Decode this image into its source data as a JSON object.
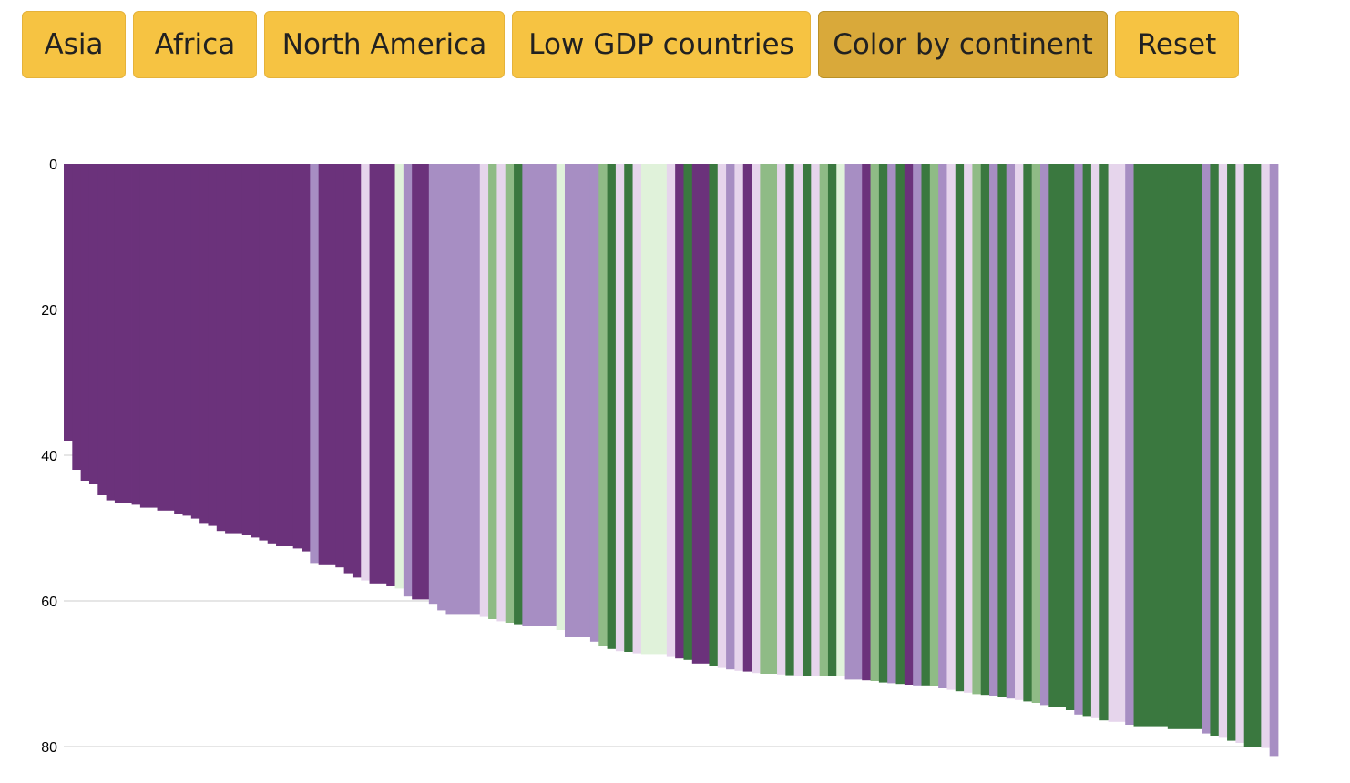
{
  "buttons": [
    {
      "id": "asia",
      "label": "Asia",
      "active": false
    },
    {
      "id": "africa",
      "label": "Africa",
      "active": false
    },
    {
      "id": "north_america",
      "label": "North America",
      "active": false
    },
    {
      "id": "low_gdp",
      "label": "Low GDP countries",
      "active": false
    },
    {
      "id": "color_by_continent",
      "label": "Color by continent",
      "active": true
    },
    {
      "id": "reset",
      "label": "Reset",
      "active": false
    }
  ],
  "colors": {
    "button_bg": "#f6c342",
    "button_active_bg": "#d9a93a",
    "grid": "#cccccc",
    "palette": {
      "dark_purple": "#6b327b",
      "medium_purple": "#a78ec3",
      "light_purple": "#e6d5ec",
      "light_green": "#e0f2da",
      "medium_green": "#8fbb86",
      "dark_green": "#3a783f"
    }
  },
  "chart_data": {
    "type": "bar",
    "orientation": "vertical-down",
    "ylim": [
      0,
      80
    ],
    "yticks": [
      0,
      20,
      40,
      60,
      80
    ],
    "grid": "horizontal",
    "bars": [
      [
        "dark_purple",
        38.0,
        1
      ],
      [
        "dark_purple",
        42.0,
        1
      ],
      [
        "dark_purple",
        43.5,
        1
      ],
      [
        "dark_purple",
        44.0,
        1
      ],
      [
        "dark_purple",
        45.5,
        1
      ],
      [
        "dark_purple",
        46.2,
        1
      ],
      [
        "dark_purple",
        46.5,
        2
      ],
      [
        "dark_purple",
        46.8,
        1
      ],
      [
        "dark_purple",
        47.2,
        2
      ],
      [
        "dark_purple",
        47.6,
        2
      ],
      [
        "dark_purple",
        48.0,
        1
      ],
      [
        "dark_purple",
        48.3,
        1
      ],
      [
        "dark_purple",
        48.7,
        1
      ],
      [
        "dark_purple",
        49.3,
        1
      ],
      [
        "dark_purple",
        49.7,
        1
      ],
      [
        "dark_purple",
        50.4,
        1
      ],
      [
        "dark_purple",
        50.7,
        2
      ],
      [
        "dark_purple",
        51.0,
        1
      ],
      [
        "dark_purple",
        51.3,
        1
      ],
      [
        "dark_purple",
        51.7,
        1
      ],
      [
        "dark_purple",
        52.1,
        1
      ],
      [
        "dark_purple",
        52.5,
        2
      ],
      [
        "dark_purple",
        52.8,
        1
      ],
      [
        "dark_purple",
        53.2,
        1
      ],
      [
        "medium_purple",
        54.8,
        1
      ],
      [
        "dark_purple",
        55.1,
        2
      ],
      [
        "dark_purple",
        55.4,
        1
      ],
      [
        "dark_purple",
        56.2,
        1
      ],
      [
        "dark_purple",
        56.8,
        1
      ],
      [
        "light_purple",
        57.2,
        1
      ],
      [
        "dark_purple",
        57.6,
        2
      ],
      [
        "dark_purple",
        58.0,
        1
      ],
      [
        "light_green",
        58.3,
        1
      ],
      [
        "medium_purple",
        59.4,
        1
      ],
      [
        "dark_purple",
        59.8,
        2
      ],
      [
        "medium_purple",
        60.4,
        1
      ],
      [
        "medium_purple",
        61.3,
        1
      ],
      [
        "medium_purple",
        61.8,
        4
      ],
      [
        "light_purple",
        62.2,
        1
      ],
      [
        "medium_green",
        62.5,
        1
      ],
      [
        "light_purple",
        62.8,
        1
      ],
      [
        "medium_green",
        63.0,
        1
      ],
      [
        "dark_green",
        63.2,
        1
      ],
      [
        "medium_purple",
        63.5,
        4
      ],
      [
        "light_green",
        64.0,
        1
      ],
      [
        "medium_purple",
        65.0,
        3
      ],
      [
        "medium_purple",
        65.6,
        1
      ],
      [
        "medium_green",
        66.2,
        1
      ],
      [
        "dark_green",
        66.6,
        1
      ],
      [
        "light_purple",
        66.9,
        1
      ],
      [
        "dark_green",
        67.0,
        1
      ],
      [
        "light_purple",
        67.2,
        1
      ],
      [
        "light_green",
        67.3,
        3
      ],
      [
        "light_purple",
        67.7,
        1
      ],
      [
        "dark_purple",
        67.9,
        1
      ],
      [
        "dark_green",
        68.1,
        1
      ],
      [
        "dark_purple",
        68.6,
        2
      ],
      [
        "dark_green",
        69.0,
        1
      ],
      [
        "light_purple",
        69.2,
        1
      ],
      [
        "medium_purple",
        69.4,
        1
      ],
      [
        "light_purple",
        69.6,
        1
      ],
      [
        "dark_purple",
        69.7,
        1
      ],
      [
        "light_purple",
        69.9,
        1
      ],
      [
        "medium_green",
        70.0,
        2
      ],
      [
        "light_purple",
        70.1,
        1
      ],
      [
        "dark_green",
        70.2,
        1
      ],
      [
        "light_purple",
        70.3,
        1
      ],
      [
        "dark_green",
        70.3,
        1
      ],
      [
        "light_purple",
        70.3,
        1
      ],
      [
        "medium_green",
        70.3,
        1
      ],
      [
        "dark_green",
        70.3,
        1
      ],
      [
        "light_green",
        70.3,
        1
      ],
      [
        "medium_purple",
        70.8,
        2
      ],
      [
        "dark_purple",
        70.9,
        1
      ],
      [
        "medium_green",
        71.0,
        1
      ],
      [
        "dark_green",
        71.2,
        1
      ],
      [
        "medium_purple",
        71.3,
        1
      ],
      [
        "dark_green",
        71.4,
        1
      ],
      [
        "dark_purple",
        71.5,
        1
      ],
      [
        "medium_purple",
        71.6,
        1
      ],
      [
        "dark_green",
        71.6,
        1
      ],
      [
        "medium_green",
        71.7,
        1
      ],
      [
        "medium_purple",
        72.0,
        1
      ],
      [
        "light_purple",
        72.2,
        1
      ],
      [
        "dark_green",
        72.4,
        1
      ],
      [
        "light_purple",
        72.6,
        1
      ],
      [
        "medium_green",
        72.8,
        1
      ],
      [
        "dark_green",
        72.9,
        1
      ],
      [
        "medium_purple",
        73.0,
        1
      ],
      [
        "dark_green",
        73.2,
        1
      ],
      [
        "medium_purple",
        73.4,
        1
      ],
      [
        "light_purple",
        73.6,
        1
      ],
      [
        "dark_green",
        73.8,
        1
      ],
      [
        "medium_green",
        74.0,
        1
      ],
      [
        "medium_purple",
        74.3,
        1
      ],
      [
        "dark_green",
        74.6,
        2
      ],
      [
        "dark_green",
        75.0,
        1
      ],
      [
        "medium_purple",
        75.6,
        1
      ],
      [
        "dark_green",
        75.8,
        1
      ],
      [
        "light_purple",
        76.1,
        1
      ],
      [
        "dark_green",
        76.4,
        1
      ],
      [
        "light_purple",
        76.6,
        2
      ],
      [
        "medium_purple",
        77.0,
        1
      ],
      [
        "dark_green",
        77.2,
        4
      ],
      [
        "dark_green",
        77.6,
        4
      ],
      [
        "medium_purple",
        78.2,
        1
      ],
      [
        "dark_green",
        78.5,
        1
      ],
      [
        "light_purple",
        78.8,
        1
      ],
      [
        "dark_green",
        79.2,
        1
      ],
      [
        "light_purple",
        79.5,
        1
      ],
      [
        "dark_green",
        80.0,
        2
      ],
      [
        "light_purple",
        80.2,
        1
      ],
      [
        "medium_purple",
        81.3,
        1
      ]
    ]
  }
}
